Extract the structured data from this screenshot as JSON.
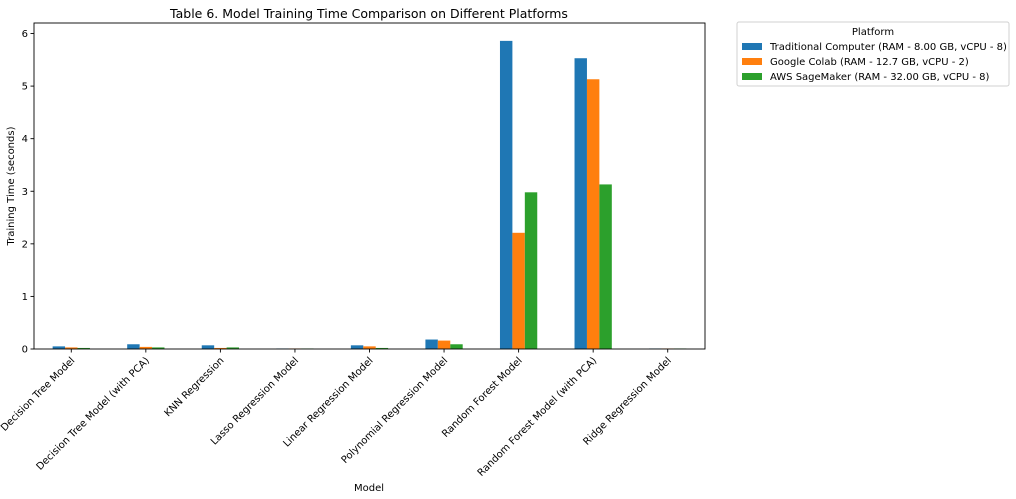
{
  "chart_data": {
    "type": "bar",
    "title": "Table 6. Model Training Time Comparison on Different Platforms",
    "xlabel": "Model",
    "ylabel": "Training Time (seconds)",
    "ylim": [
      0,
      6.2
    ],
    "yticks": [
      0,
      1,
      2,
      3,
      4,
      5,
      6
    ],
    "categories": [
      "Decision Tree Model",
      "Decision Tree Model (with PCA)",
      "KNN Regression",
      "Lasso Regression Model",
      "Linear Regression Model",
      "Polynomial Regression Model",
      "Random Forest Model",
      "Random Forest Model (with PCA)",
      "Ridge Regression Model"
    ],
    "series": [
      {
        "name": "Traditional Computer (RAM - 8.00 GB, vCPU - 8)",
        "color": "#1f77b4",
        "values": [
          0.05,
          0.09,
          0.07,
          0.01,
          0.07,
          0.18,
          5.86,
          5.53,
          0.01
        ]
      },
      {
        "name": "Google Colab (RAM - 12.7 GB, vCPU - 2)",
        "color": "#ff7f0e",
        "values": [
          0.03,
          0.04,
          0.02,
          0.01,
          0.05,
          0.16,
          2.21,
          5.13,
          0.01
        ]
      },
      {
        "name": "AWS SageMaker (RAM - 32.00 GB, vCPU - 8)",
        "color": "#2ca02c",
        "values": [
          0.02,
          0.03,
          0.03,
          0.01,
          0.02,
          0.09,
          2.98,
          3.13,
          0.01
        ]
      }
    ],
    "legend": {
      "title": "Platform",
      "placement": "outside upper right"
    },
    "grid": false
  }
}
